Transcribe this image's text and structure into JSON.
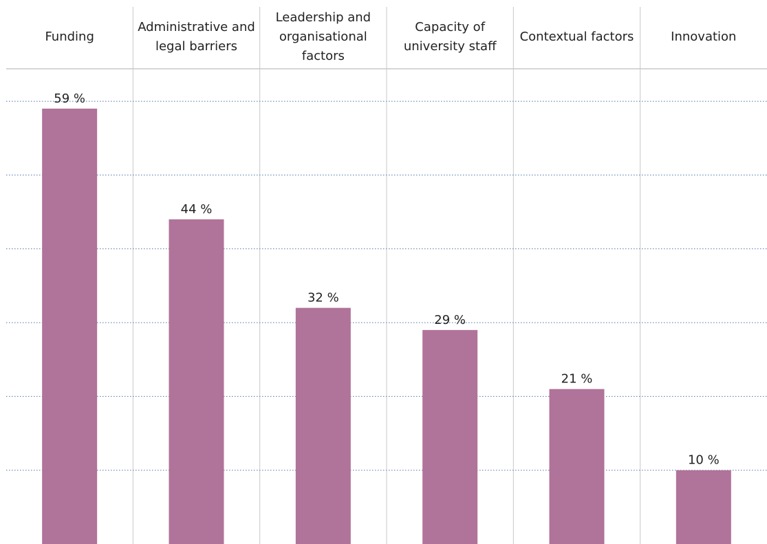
{
  "chart_data": {
    "type": "bar",
    "categories": [
      "Funding",
      "Administrative and legal barriers",
      "Leadership and organisational factors",
      "Capacity of university staff",
      "Contextual factors",
      "Innovation"
    ],
    "values": [
      59,
      44,
      32,
      29,
      21,
      10
    ],
    "value_labels": [
      "59 %",
      "44 %",
      "32 %",
      "29 %",
      "21 %",
      "10 %"
    ],
    "color": "#b07399",
    "ylim": [
      0,
      64.4
    ],
    "yticks": [
      10,
      20,
      30,
      40,
      50,
      60
    ],
    "grid": true
  }
}
